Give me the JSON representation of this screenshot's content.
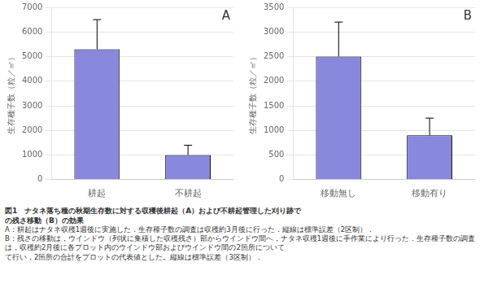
{
  "title": [
    "図1　ナタネ落ち種の秋期生存数に対する収穫後耕起（A）および不耕起管理した刈り跡で",
    "の残さ移動（B）の効果"
  ],
  "annotations": [
    "A：耕起はナタネ収穫1週後に実施した．生存種子数の調査は収穫約3月後に行った．縦線は標準誤差（2区制）．",
    "B：残さの移動は，ウインドウ（列状に集積した収穫残さ）部からウインドウ間へ，ナタネ収穫1週後に手作業により行った．生存種子数の調査は，収穫約2月後に各プロット内のウインドウ部およびウインドウ間の2箇所について",
    "て行い，2箇所の合計をプロットの代表値とした。縦線は標準誤差（3区制）．"
  ],
  "chart_data": [
    {
      "type": "bar",
      "categories": [
        "耕起",
        "不耕起"
      ],
      "values": [
        5300,
        1000
      ],
      "errors": [
        1200,
        400
      ],
      "ylabel": "生存種子数（粒／㎡）",
      "ylim": [
        0,
        7000
      ],
      "yticks": [
        0,
        1000,
        2000,
        3000,
        4000,
        5000,
        6000,
        7000
      ],
      "color": "#8888dd",
      "grid": true,
      "annotations": [
        "A"
      ]
    },
    {
      "type": "bar",
      "categories": [
        "移動無し",
        "移動有り"
      ],
      "values": [
        2500,
        900
      ],
      "errors": [
        700,
        350
      ],
      "ylabel": "生存種子数（粒／㎡）",
      "ylim": [
        0,
        3500
      ],
      "yticks": [
        0,
        500,
        1000,
        1500,
        2000,
        2500,
        3000,
        3500
      ],
      "color": "#8888dd",
      "grid": true,
      "annotations": [
        "B"
      ]
    }
  ]
}
